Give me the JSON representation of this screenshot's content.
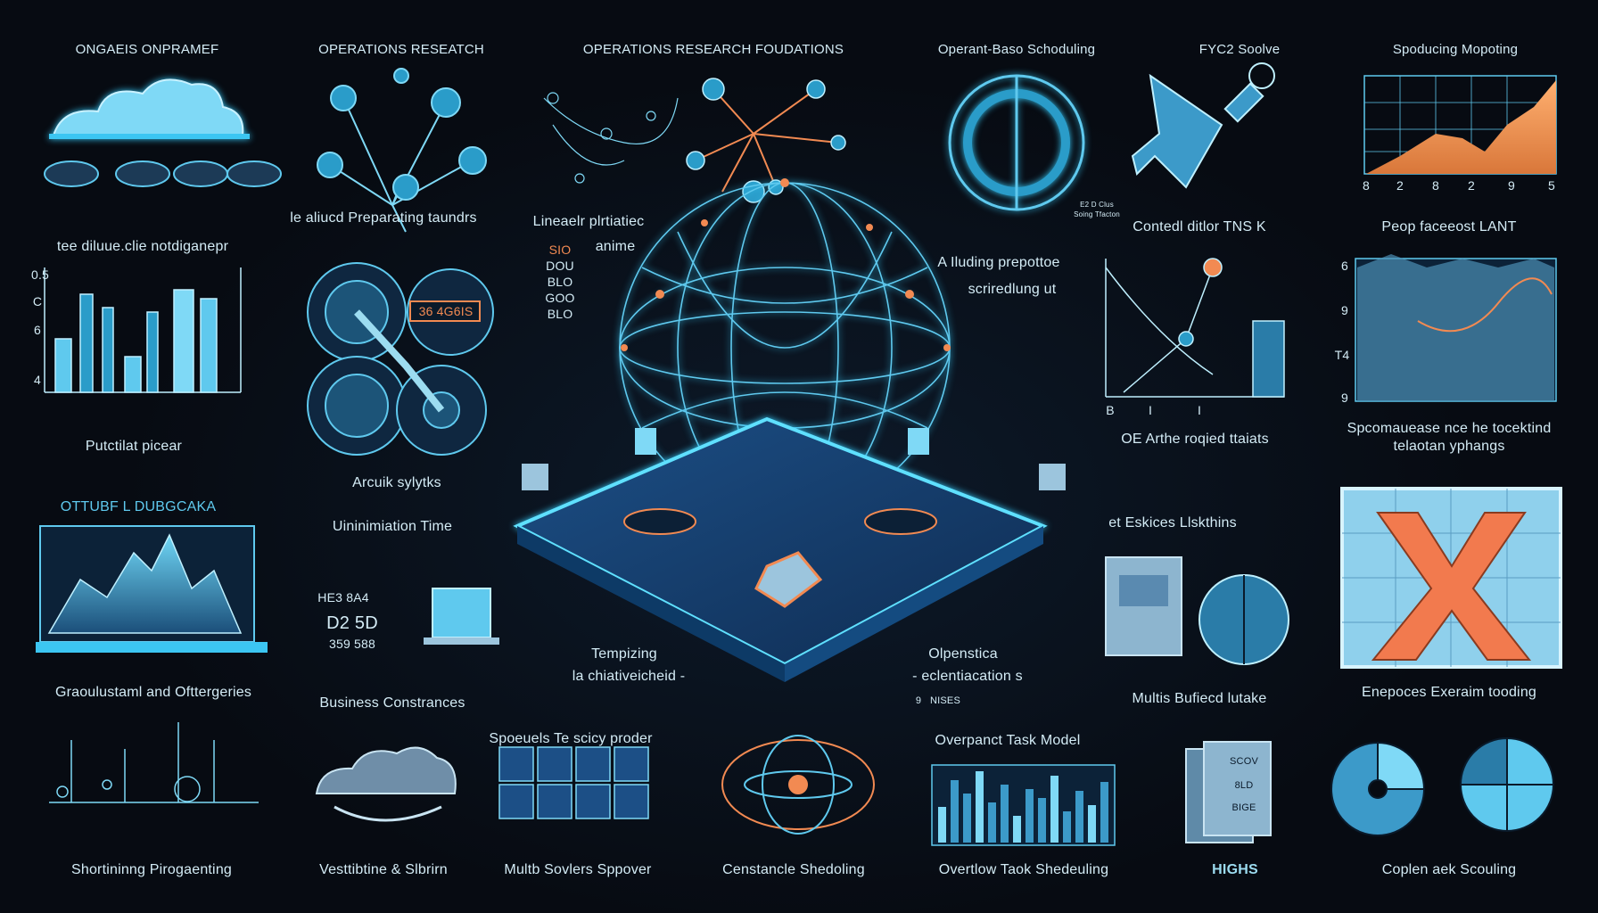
{
  "labels": {
    "t1": "ONGAEIS ONPRAMEF",
    "t2": "OPERATIONS RESEATCH",
    "t3": "OPERATIONS RESEARCH FOUDATIONS",
    "t4": "Operant-Baso Schoduling",
    "t5": "FYC2 Soolve",
    "t6": "Spoducing Mopoting",
    "l1": "tee diluue.clie notdiganepr",
    "l2": "le aliucd Preparating taundrs",
    "l3": "Lineaelr plrtiatiec",
    "l3b": "anime",
    "l4": "A Iluding prepottoe",
    "l4b": "scriredlung ut",
    "l5": "Contedl ditlor TNS K",
    "l6": "Peop faceeost LANT",
    "l7": "Putctilat picear",
    "l8": "Arcuik sylytks",
    "l9": "OE Arthe roqied ttaiats",
    "l10": "Spcomauease nce he tocektind",
    "l10b": "telaotan yphangs",
    "l11": "OTTUBF L DUBGCAKA",
    "l12": "Uininimiation Time",
    "l13": "et Eskices Llskthins",
    "l14": "Tempizing",
    "l14b": "la chiativeicheid -",
    "l15": "Olpenstica",
    "l15b": "- eclentiacation s",
    "l16": "Graoulustaml and Ofttergeries",
    "l17": "Business Constrances",
    "l18": "Multis Bufiecd lutake",
    "l19": "Enepoces Exeraim tooding",
    "l20": "Spoeuels Te scicy proder",
    "l21": "Overpanct Task Model",
    "l22": "Shortininng Pirogaenting",
    "l23": "Vesttibtine & Slbrirn",
    "l24": "Multb Sovlers Sppover",
    "l25": "Censtancle Shedoling",
    "l26": "Overtlow Taok Shedeuling",
    "l27": "HIGHS",
    "l28": "Coplen aek Scouling",
    "clock1": "36 4G6IS",
    "clock2": "HE3 8A4",
    "clock3": "D2 5D",
    "clock4": "359 588",
    "pl_tag1": "NISES",
    "pl_tag2": "9",
    "code1": "SIO",
    "code2": "DOU",
    "code3": "BLO",
    "code4": "GOO",
    "code5": "BLO",
    "doc1": "SCOV",
    "doc2": "8LD",
    "doc3": "BIGE",
    "card_tiny1": "E2 D Clus",
    "card_tiny2": "Soing Tfacton"
  },
  "axis": {
    "a1": [
      "0.5",
      "C",
      "6",
      "4"
    ],
    "a2": [
      "8",
      "2",
      "8",
      "2",
      "9",
      "5"
    ],
    "a3": [
      "6",
      "9",
      "T4",
      "9"
    ],
    "a4": [
      "B",
      "I",
      "I"
    ]
  },
  "colors": {
    "accent": "#3cc6f2",
    "orange": "#f28a52",
    "panel": "#1b3a5c",
    "dark": "#070b12"
  }
}
